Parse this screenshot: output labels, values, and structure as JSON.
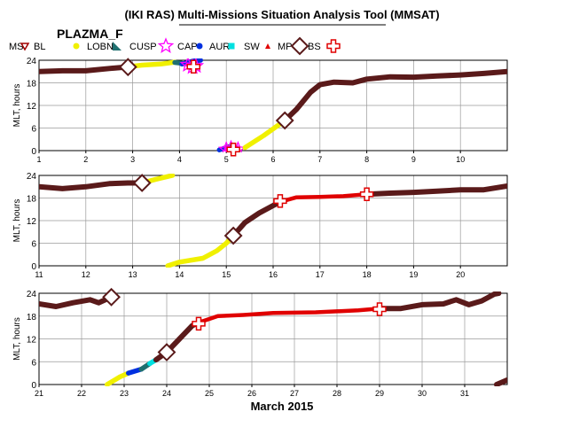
{
  "header": {
    "title": "(IKI RAS) Multi-Missions Situation Analysis Tool (MMSAT)",
    "mission": "PLAZMA_F"
  },
  "legend": [
    {
      "label": "MS",
      "marker": "none",
      "color": "#000000"
    },
    {
      "label": "BL",
      "marker": "triangle-down-icon",
      "color": "#a00000"
    },
    {
      "label": "LOBN",
      "marker": "dot-icon",
      "color": "#f0f000"
    },
    {
      "label": "CUSP",
      "marker": "wedge-icon",
      "color": "#207070"
    },
    {
      "label": "CAP",
      "marker": "star-icon",
      "color": "#ff00ff"
    },
    {
      "label": "AUR",
      "marker": "dot-icon",
      "color": "#0030e0"
    },
    {
      "label": "SW",
      "marker": "square-icon",
      "color": "#00e0e0"
    },
    {
      "label": "MP",
      "marker": "triangle-up-icon",
      "color": "#e00000"
    },
    {
      "label": "BS",
      "marker": "diamond-icon",
      "color": "#5a1a1a"
    },
    {
      "label": "",
      "marker": "cross-icon",
      "color": "#e00000"
    }
  ],
  "colors": {
    "MS": "#5a1a1a",
    "LOBN": "#f0f000",
    "CUSP": "#207070",
    "CAP": "#ff00ff",
    "AUR": "#0030e0",
    "SW": "#00e0e0",
    "MP": "#e00000",
    "diamond": "#5a1a1a",
    "cross": "#e00000"
  },
  "xaxis_label": "March 2015",
  "chart_data": [
    {
      "type": "line",
      "ylabel": "MLT, hours",
      "xlim": [
        1,
        11
      ],
      "ylim": [
        0,
        24
      ],
      "xticks": [
        1,
        2,
        3,
        4,
        5,
        6,
        7,
        8,
        9,
        10
      ],
      "yticks": [
        0,
        6,
        12,
        18,
        24
      ],
      "segments": [
        {
          "region": "MS",
          "points": [
            [
              1,
              21.0
            ],
            [
              1.5,
              21.2
            ],
            [
              2,
              21.2
            ],
            [
              2.5,
              21.8
            ],
            [
              2.85,
              22.2
            ]
          ]
        },
        {
          "region": "LOBN",
          "points": [
            [
              2.85,
              22.2
            ],
            [
              3.2,
              22.7
            ],
            [
              3.6,
              23.0
            ],
            [
              3.9,
              23.5
            ]
          ]
        },
        {
          "region": "CUSP",
          "points": [
            [
              3.9,
              23.4
            ],
            [
              4.05,
              23.2
            ]
          ]
        },
        {
          "region": "AUR",
          "points": [
            [
              4.05,
              23.0
            ],
            [
              4.3,
              23.8
            ],
            [
              4.45,
              24.0
            ]
          ]
        },
        {
          "region": "CAP",
          "points": [
            [
              4.18,
              22.8
            ],
            [
              4.28,
              22.2
            ],
            [
              4.35,
              22.5
            ]
          ]
        },
        {
          "region": "AUR",
          "points": [
            [
              4.85,
              0.2
            ],
            [
              5.0,
              0.8
            ]
          ]
        },
        {
          "region": "CUSP",
          "points": [
            [
              5.0,
              0.8
            ],
            [
              5.1,
              1.2
            ]
          ]
        },
        {
          "region": "CAP",
          "points": [
            [
              5.0,
              0.3
            ],
            [
              5.1,
              0.6
            ],
            [
              5.25,
              0.3
            ]
          ]
        },
        {
          "region": "LOBN",
          "points": [
            [
              5.4,
              0.8
            ],
            [
              5.8,
              4.0
            ],
            [
              6.25,
              8.0
            ]
          ]
        },
        {
          "region": "MS",
          "points": [
            [
              6.25,
              8.0
            ],
            [
              6.5,
              11.0
            ],
            [
              6.8,
              15.5
            ],
            [
              7.0,
              17.5
            ],
            [
              7.3,
              18.2
            ],
            [
              7.7,
              18.0
            ],
            [
              8.0,
              19.0
            ],
            [
              8.5,
              19.6
            ],
            [
              9.0,
              19.5
            ],
            [
              9.5,
              19.8
            ],
            [
              10,
              20.1
            ],
            [
              10.5,
              20.5
            ],
            [
              11,
              21.0
            ]
          ]
        }
      ],
      "boundary_markers": [
        {
          "kind": "diamond",
          "x": 2.9,
          "y": 22.2
        },
        {
          "kind": "diamond",
          "x": 6.25,
          "y": 8.0
        },
        {
          "kind": "cross",
          "x": 4.3,
          "y": 22.3
        },
        {
          "kind": "cross",
          "x": 5.15,
          "y": 0.3
        }
      ]
    },
    {
      "type": "line",
      "ylabel": "MLT, hours",
      "xlim": [
        11,
        21
      ],
      "ylim": [
        0,
        24
      ],
      "xticks": [
        11,
        12,
        13,
        14,
        15,
        16,
        17,
        18,
        19,
        20
      ],
      "yticks": [
        0,
        6,
        12,
        18,
        24
      ],
      "segments": [
        {
          "region": "MS",
          "points": [
            [
              11,
              21.0
            ],
            [
              11.5,
              20.5
            ],
            [
              12,
              21.0
            ],
            [
              12.5,
              21.8
            ],
            [
              12.9,
              22.0
            ],
            [
              13.2,
              22.0
            ]
          ]
        },
        {
          "region": "LOBN",
          "points": [
            [
              13.2,
              22.0
            ],
            [
              13.5,
              23.0
            ],
            [
              13.85,
              24.0
            ]
          ]
        },
        {
          "region": "LOBN",
          "points": [
            [
              13.75,
              0.0
            ],
            [
              14.0,
              1.0
            ],
            [
              14.5,
              2.0
            ],
            [
              14.8,
              4.0
            ],
            [
              15.0,
              6.0
            ],
            [
              15.15,
              8.0
            ]
          ]
        },
        {
          "region": "MS",
          "points": [
            [
              15.15,
              8.0
            ],
            [
              15.4,
              11.5
            ],
            [
              15.7,
              14.0
            ],
            [
              16.0,
              16.0
            ],
            [
              16.15,
              17.0
            ]
          ]
        },
        {
          "region": "MP",
          "points": [
            [
              16.15,
              17.0
            ],
            [
              16.5,
              18.2
            ],
            [
              17.0,
              18.3
            ],
            [
              17.5,
              18.5
            ],
            [
              18.0,
              19.0
            ]
          ]
        },
        {
          "region": "MS",
          "points": [
            [
              18.0,
              19.0
            ],
            [
              18.5,
              19.3
            ],
            [
              19.0,
              19.5
            ],
            [
              19.5,
              19.8
            ],
            [
              20.0,
              20.2
            ],
            [
              20.5,
              20.2
            ],
            [
              21.0,
              21.2
            ]
          ]
        }
      ],
      "boundary_markers": [
        {
          "kind": "diamond",
          "x": 13.2,
          "y": 22.0
        },
        {
          "kind": "diamond",
          "x": 15.15,
          "y": 8.0
        },
        {
          "kind": "cross",
          "x": 16.15,
          "y": 17.2
        },
        {
          "kind": "cross",
          "x": 18.0,
          "y": 19.0
        }
      ]
    },
    {
      "type": "line",
      "ylabel": "MLT, hours",
      "xlim": [
        21,
        32
      ],
      "ylim": [
        0,
        24
      ],
      "xticks": [
        21,
        22,
        23,
        24,
        25,
        26,
        27,
        28,
        29,
        30,
        31
      ],
      "yticks": [
        0,
        6,
        12,
        18,
        24
      ],
      "segments": [
        {
          "region": "MS",
          "points": [
            [
              21,
              21.2
            ],
            [
              21.4,
              20.5
            ],
            [
              21.8,
              21.5
            ],
            [
              22.2,
              22.3
            ],
            [
              22.4,
              21.5
            ],
            [
              22.6,
              22.5
            ],
            [
              22.7,
              23.0
            ]
          ]
        },
        {
          "region": "LOBN",
          "points": [
            [
              22.6,
              0.0
            ],
            [
              22.9,
              2.0
            ],
            [
              23.1,
              3.0
            ]
          ]
        },
        {
          "region": "AUR",
          "points": [
            [
              23.1,
              3.0
            ],
            [
              23.4,
              4.0
            ]
          ]
        },
        {
          "region": "CUSP",
          "points": [
            [
              23.4,
              4.0
            ],
            [
              23.6,
              5.5
            ]
          ]
        },
        {
          "region": "SW",
          "points": [
            [
              23.6,
              5.5
            ],
            [
              23.75,
              6.5
            ]
          ]
        },
        {
          "region": "MS",
          "points": [
            [
              23.75,
              6.5
            ],
            [
              24.0,
              8.5
            ],
            [
              24.3,
              12.0
            ],
            [
              24.6,
              15.5
            ],
            [
              24.8,
              16.5
            ]
          ]
        },
        {
          "region": "MP",
          "points": [
            [
              24.8,
              16.5
            ],
            [
              25.2,
              18.0
            ],
            [
              25.8,
              18.3
            ],
            [
              26.5,
              18.8
            ],
            [
              27.5,
              19.0
            ],
            [
              28.5,
              19.5
            ],
            [
              29.0,
              20.0
            ]
          ]
        },
        {
          "region": "MS",
          "points": [
            [
              29.0,
              20.0
            ],
            [
              29.5,
              20.0
            ],
            [
              30.0,
              21.0
            ],
            [
              30.5,
              21.2
            ],
            [
              30.8,
              22.3
            ],
            [
              31.1,
              21.0
            ],
            [
              31.4,
              22.0
            ],
            [
              31.7,
              23.8
            ],
            [
              31.8,
              24.0
            ]
          ]
        },
        {
          "region": "MS",
          "points": [
            [
              31.75,
              0.0
            ],
            [
              32.0,
              1.2
            ]
          ]
        }
      ],
      "boundary_markers": [
        {
          "kind": "diamond",
          "x": 22.7,
          "y": 23.0
        },
        {
          "kind": "diamond",
          "x": 24.0,
          "y": 8.5
        },
        {
          "kind": "cross",
          "x": 24.75,
          "y": 16.0
        },
        {
          "kind": "cross",
          "x": 29.0,
          "y": 19.8
        }
      ]
    }
  ]
}
